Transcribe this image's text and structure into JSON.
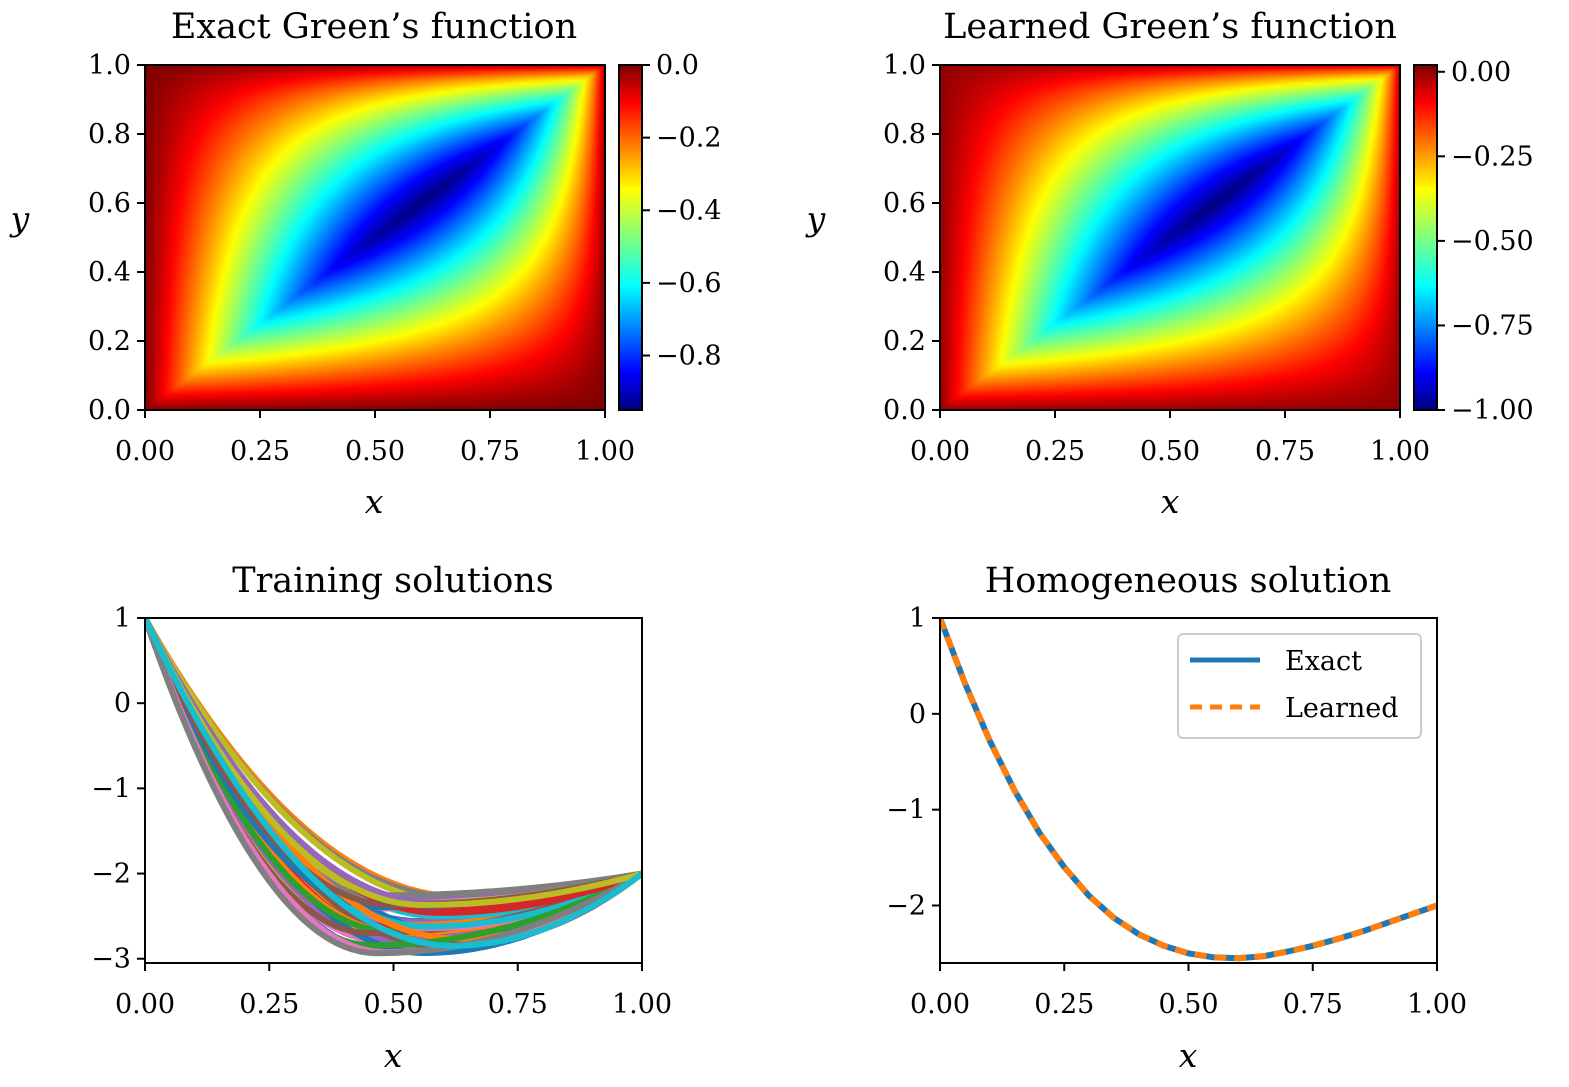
{
  "chart_data": [
    {
      "type": "heatmap",
      "title": "Exact Green’s function",
      "xlabel": "x",
      "ylabel": "y",
      "xlim": [
        0,
        1
      ],
      "ylim": [
        0,
        1
      ],
      "xticks": [
        0,
        0.25,
        0.5,
        0.75,
        1.0
      ],
      "xtick_labels": [
        "0.00",
        "0.25",
        "0.50",
        "0.75",
        "1.00"
      ],
      "yticks": [
        0,
        0.2,
        0.4,
        0.6,
        0.8,
        1.0
      ],
      "ytick_labels": [
        "0.0",
        "0.2",
        "0.4",
        "0.6",
        "0.8",
        "1.0"
      ],
      "colormap": "jet",
      "colorbar": {
        "range": [
          -0.95,
          0.0
        ],
        "ticks": [
          0.0,
          -0.2,
          -0.4,
          -0.6,
          -0.8
        ],
        "tick_labels": [
          "0.0",
          "−0.2",
          "−0.4",
          "−0.6",
          "−0.8"
        ]
      }
    },
    {
      "type": "heatmap",
      "title": "Learned Green’s function",
      "xlabel": "x",
      "ylabel": "y",
      "xlim": [
        0,
        1
      ],
      "ylim": [
        0,
        1
      ],
      "xticks": [
        0,
        0.25,
        0.5,
        0.75,
        1.0
      ],
      "xtick_labels": [
        "0.00",
        "0.25",
        "0.50",
        "0.75",
        "1.00"
      ],
      "yticks": [
        0,
        0.2,
        0.4,
        0.6,
        0.8,
        1.0
      ],
      "ytick_labels": [
        "0.0",
        "0.2",
        "0.4",
        "0.6",
        "0.8",
        "1.0"
      ],
      "colormap": "jet",
      "colorbar": {
        "range": [
          -1.0,
          0.02
        ],
        "ticks": [
          0.0,
          -0.25,
          -0.5,
          -0.75,
          -1.0
        ],
        "tick_labels": [
          "0.00",
          "−0.25",
          "−0.50",
          "−0.75",
          "−1.00"
        ]
      }
    },
    {
      "type": "line",
      "title": "Training solutions",
      "xlabel": "x",
      "ylabel": "",
      "xlim": [
        0,
        1
      ],
      "ylim": [
        -3.05,
        1
      ],
      "xticks": [
        0,
        0.25,
        0.5,
        0.75,
        1.0
      ],
      "xtick_labels": [
        "0.00",
        "0.25",
        "0.50",
        "0.75",
        "1.00"
      ],
      "yticks": [
        1,
        0,
        -1,
        -2,
        -3
      ],
      "ytick_labels": [
        "1",
        "0",
        "−1",
        "−2",
        "−3"
      ],
      "n_series": 60,
      "endpoints": {
        "x0": 0,
        "y0": 1,
        "x1": 1,
        "y1": -2
      },
      "minimum_range": [
        -2.95,
        -2.25
      ],
      "minimum_x_range": [
        0.45,
        0.65
      ],
      "colors": [
        "#1f77b4",
        "#ff7f0e",
        "#2ca02c",
        "#d62728",
        "#9467bd",
        "#8c564b",
        "#e377c2",
        "#7f7f7f",
        "#bcbd22",
        "#17becf"
      ]
    },
    {
      "type": "line",
      "title": "Homogeneous solution",
      "xlabel": "x",
      "ylabel": "",
      "xlim": [
        0,
        1
      ],
      "ylim": [
        -2.6,
        1
      ],
      "xticks": [
        0,
        0.25,
        0.5,
        0.75,
        1.0
      ],
      "xtick_labels": [
        "0.00",
        "0.25",
        "0.50",
        "0.75",
        "1.00"
      ],
      "yticks": [
        1,
        0,
        -1,
        -2
      ],
      "ytick_labels": [
        "1",
        "0",
        "−1",
        "−2"
      ],
      "x": [
        0,
        0.05,
        0.1,
        0.15,
        0.2,
        0.25,
        0.3,
        0.35,
        0.4,
        0.45,
        0.5,
        0.55,
        0.6,
        0.65,
        0.7,
        0.75,
        0.8,
        0.85,
        0.9,
        0.95,
        1.0
      ],
      "series": [
        {
          "name": "Exact",
          "style": "solid",
          "color": "#1f77b4",
          "values": [
            1.0,
            0.32,
            -0.28,
            -0.8,
            -1.24,
            -1.6,
            -1.9,
            -2.13,
            -2.3,
            -2.42,
            -2.5,
            -2.54,
            -2.55,
            -2.53,
            -2.48,
            -2.42,
            -2.35,
            -2.27,
            -2.18,
            -2.09,
            -2.0
          ]
        },
        {
          "name": "Learned",
          "style": "dashed",
          "color": "#ff7f0e",
          "values": [
            1.0,
            0.32,
            -0.28,
            -0.8,
            -1.24,
            -1.6,
            -1.9,
            -2.13,
            -2.3,
            -2.42,
            -2.5,
            -2.54,
            -2.55,
            -2.53,
            -2.48,
            -2.42,
            -2.35,
            -2.27,
            -2.18,
            -2.09,
            -2.0
          ]
        }
      ],
      "legend": "top-right"
    }
  ]
}
